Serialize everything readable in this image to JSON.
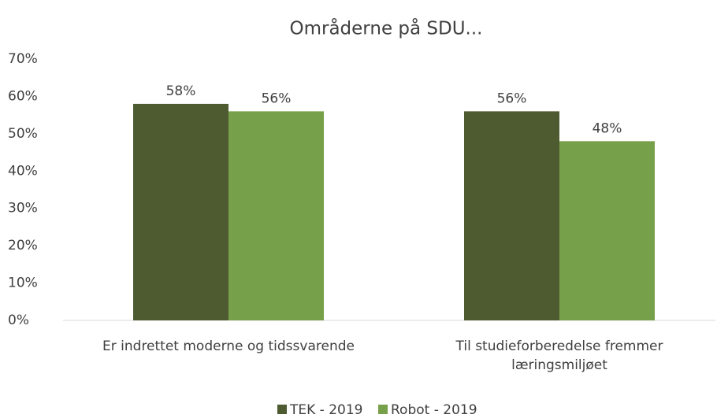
{
  "chart_data": {
    "type": "bar",
    "title": "Områderne på SDU...",
    "categories": [
      "Er indrettet moderne og tidssvarende",
      "Til studieforberedelse fremmer læringsmiljøet"
    ],
    "series": [
      {
        "name": "TEK - 2019",
        "color": "#4e5b31",
        "values": [
          58,
          56
        ],
        "value_labels": [
          "58%",
          "56%"
        ]
      },
      {
        "name": "Robot - 2019",
        "color": "#77a04a",
        "values": [
          56,
          48
        ],
        "value_labels": [
          "56%",
          "48%"
        ]
      }
    ],
    "ylim": [
      0,
      70
    ],
    "yticks": [
      {
        "value": 0,
        "label": "0%"
      },
      {
        "value": 10,
        "label": "10%"
      },
      {
        "value": 20,
        "label": "20%"
      },
      {
        "value": 30,
        "label": "30%"
      },
      {
        "value": 40,
        "label": "40%"
      },
      {
        "value": 50,
        "label": "50%"
      },
      {
        "value": 60,
        "label": "60%"
      },
      {
        "value": 70,
        "label": "70%"
      }
    ],
    "grid": false,
    "legend": "bottom"
  }
}
